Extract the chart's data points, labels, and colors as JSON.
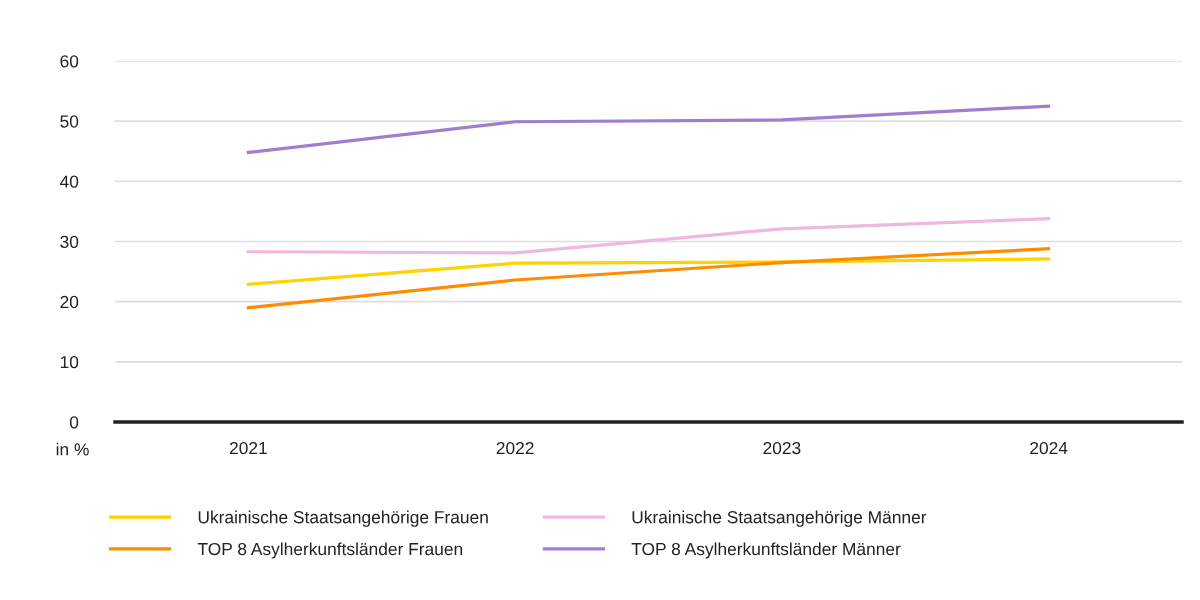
{
  "chart_data": {
    "type": "line",
    "ylabel": "in %",
    "categories": [
      "2021",
      "2022",
      "2023",
      "2024"
    ],
    "series": [
      {
        "name": "Ukrainische Staatsangehörige Frauen",
        "color": "#ffd200",
        "values": [
          22.9,
          26.4,
          26.6,
          27.1
        ]
      },
      {
        "name": "TOP 8 Asylherkunftsländer Frauen",
        "color": "#ff8c00",
        "values": [
          19.0,
          23.6,
          26.5,
          28.8
        ]
      },
      {
        "name": "Ukrainische Staatsangehörige Männer",
        "color": "#f0b8de",
        "values": [
          28.3,
          28.1,
          32.1,
          33.8
        ]
      },
      {
        "name": "TOP 8 Asylherkunftsländer Männer",
        "color": "#a07ecb",
        "values": [
          44.8,
          49.9,
          50.2,
          52.5
        ]
      }
    ],
    "ylim": [
      0,
      60
    ],
    "yticks": [
      0,
      10,
      20,
      30,
      40,
      50,
      60
    ],
    "grid": "y",
    "legend": "bottom",
    "marker": "none",
    "line_style": "solid"
  }
}
